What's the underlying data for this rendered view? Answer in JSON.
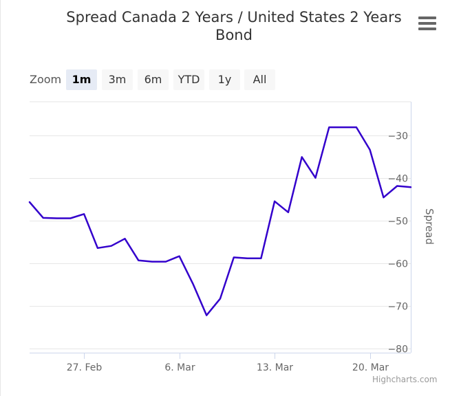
{
  "title": "Spread Canada 2 Years / United States 2 Years Bond",
  "title_lines": [
    "Spread Canada 2 Years / United States 2 Years",
    "Bond"
  ],
  "menu_icon": "hamburger-menu-icon",
  "zoom": {
    "label": "Zoom",
    "buttons": [
      "1m",
      "3m",
      "6m",
      "YTD",
      "1y",
      "All"
    ],
    "selected": "1m"
  },
  "credits": "Highcharts.com",
  "chart_data": {
    "type": "line",
    "title": "Spread Canada 2 Years / United States 2 Years Bond",
    "xlabel": "",
    "ylabel": "Spread",
    "ylim": [
      -81,
      -22
    ],
    "y_ticks": [
      -30,
      -40,
      -50,
      -60,
      -70,
      -80
    ],
    "y_tick_labels": [
      "−30",
      "−40",
      "−50",
      "−60",
      "−70",
      "−80"
    ],
    "x_ticks": [
      4,
      11,
      18,
      25
    ],
    "x_tick_labels": [
      "27. Feb",
      "6. Mar",
      "13. Mar",
      "20. Mar"
    ],
    "xlim": [
      0,
      28
    ],
    "grid": true,
    "series": [
      {
        "name": "Spread",
        "color": "#3300cc",
        "x": [
          0,
          1,
          2,
          3,
          4,
          5,
          6,
          7,
          8,
          9,
          10,
          11,
          12,
          13,
          14,
          15,
          16,
          17,
          18,
          19,
          20,
          21,
          22,
          23,
          24,
          25,
          26,
          27,
          28
        ],
        "values": [
          -45.6,
          -49.3,
          -49.4,
          -49.4,
          -48.4,
          -56.4,
          -55.9,
          -54.2,
          -59.3,
          -59.6,
          -59.6,
          -58.3,
          -64.8,
          -72.2,
          -68.3,
          -58.6,
          -58.8,
          -58.8,
          -45.4,
          -48.0,
          -35.0,
          -39.9,
          -28.0,
          -28.0,
          -28.0,
          -33.3,
          -44.5,
          -41.8,
          -42.1
        ]
      }
    ]
  }
}
